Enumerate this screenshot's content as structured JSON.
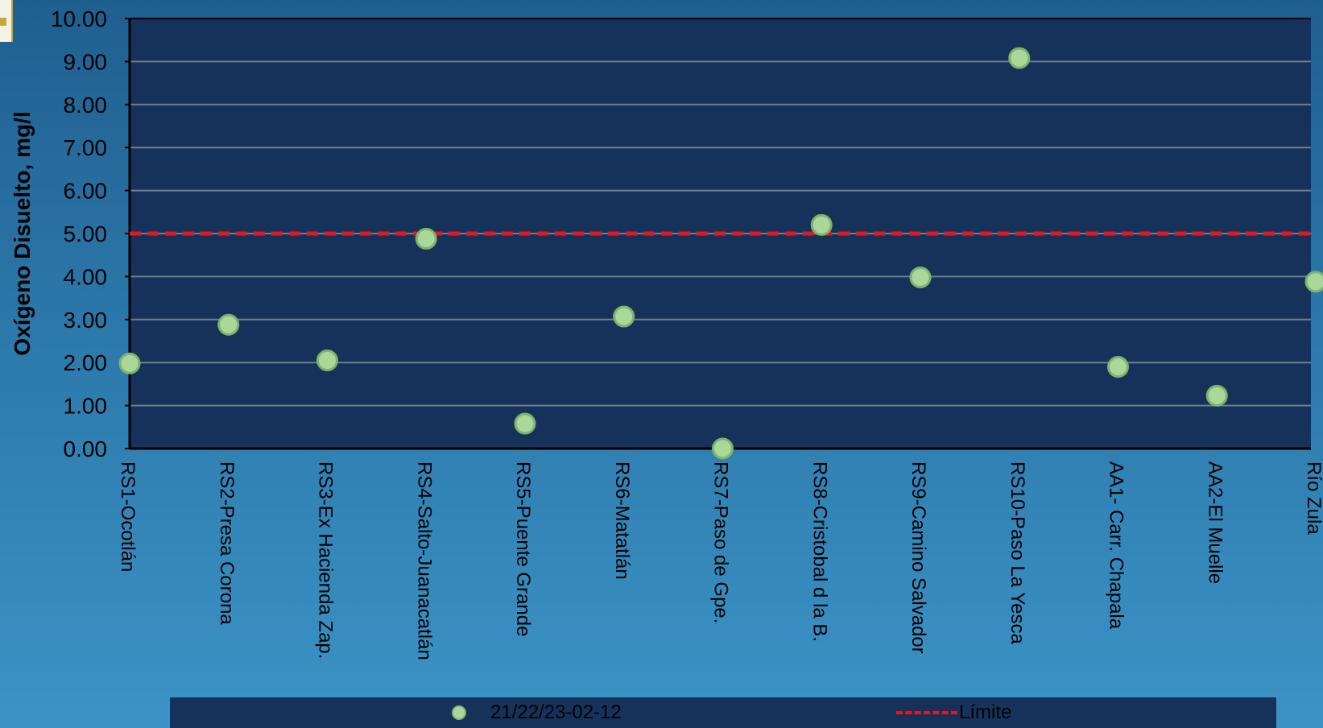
{
  "chart_data": {
    "type": "scatter",
    "ylabel": "Oxígeno Disuelto, mg/l",
    "ylim": [
      0,
      10
    ],
    "ytick_step": 1,
    "ytick_labels": [
      "0.00",
      "1.00",
      "2.00",
      "3.00",
      "4.00",
      "5.00",
      "6.00",
      "7.00",
      "8.00",
      "9.00",
      "10.00"
    ],
    "grid": true,
    "legend_position": "bottom",
    "categories": [
      "RS1-Ocotlán",
      "RS2-Presa Corona",
      "RS3-Ex Hacienda Zap.",
      "RS4-Salto-Juanacatlán",
      "RS5-Puente Grande",
      "RS6-Matatlán",
      "RS7-Paso de Gpe.",
      "RS8-Cristobal d la B.",
      "RS9-Camino Salvador",
      "RS10-Paso La Yesca",
      "AA1- Carr. Chapala",
      "AA2-El Muelle",
      "Río Zula"
    ],
    "series": [
      {
        "name": "21/22/23-02-12",
        "kind": "markers",
        "color": "#a9d89a",
        "values": [
          1.98,
          2.88,
          2.05,
          4.88,
          0.58,
          3.07,
          0.0,
          5.2,
          3.98,
          9.08,
          1.9,
          1.23,
          3.88
        ]
      },
      {
        "name": "Límite",
        "kind": "dashed-line",
        "color": "#e8151e",
        "value": 5.0
      }
    ],
    "colors": {
      "plot_background": "#17325a",
      "gridline": "#6d7f92",
      "axis": "#000000"
    }
  }
}
